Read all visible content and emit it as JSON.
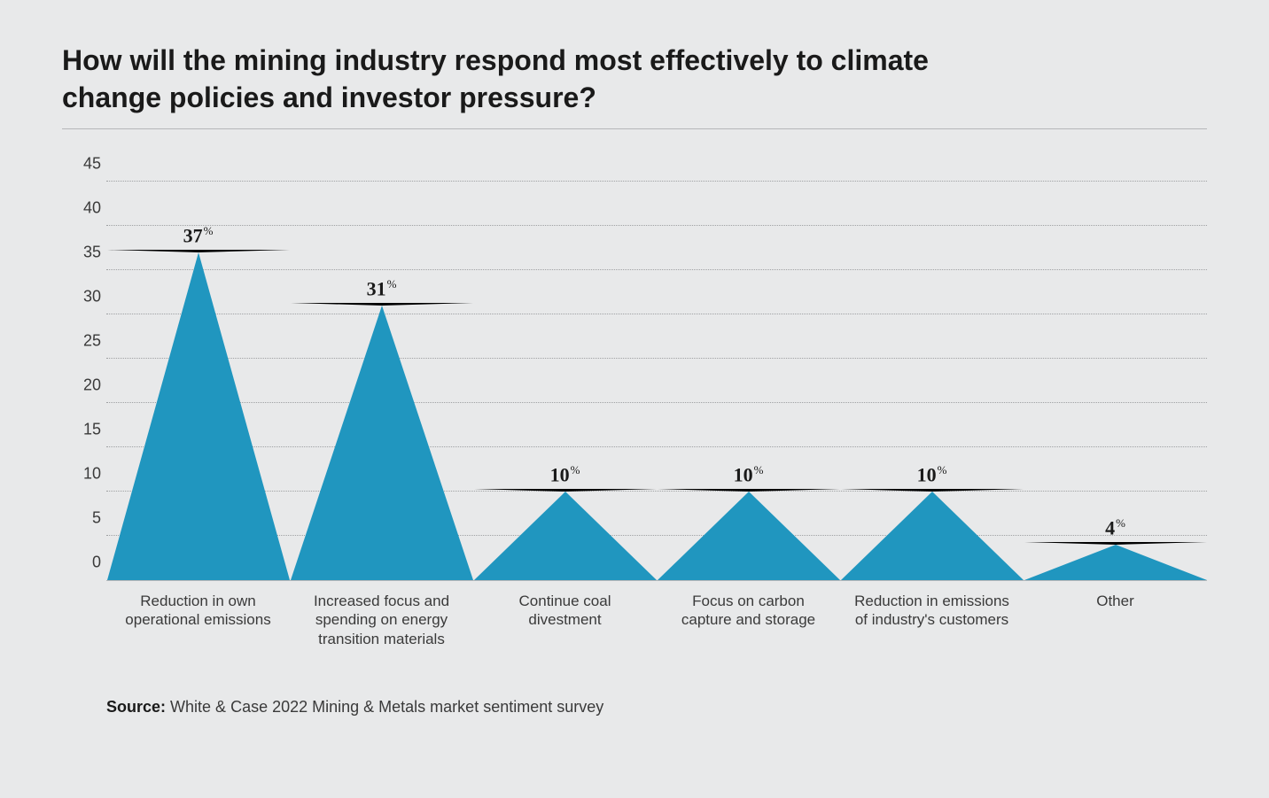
{
  "chart": {
    "type": "triangle-column",
    "title": "How will the mining industry respond most effectively to climate change policies and investor pressure?",
    "background_color": "#e8e9ea",
    "triangle_color": "#2096bf",
    "grid_color": "#9fa1a3",
    "title_color": "#1a1a1a",
    "title_fontsize": 32,
    "axis_label_fontsize": 17,
    "value_label_fontsize": 22,
    "value_label_font": "Georgia, serif",
    "ylim": [
      0,
      45
    ],
    "ytick_step": 5,
    "y_ticks": [
      0,
      5,
      10,
      15,
      20,
      25,
      30,
      35,
      40,
      45
    ],
    "categories": [
      "Reduction in own operational emissions",
      "Increased focus and spending on energy transition materials",
      "Continue coal divestment",
      "Focus on carbon capture and storage",
      "Reduction in emissions of industry's customers",
      "Other"
    ],
    "values": [
      37,
      31,
      10,
      10,
      10,
      4
    ],
    "value_suffix": "%"
  },
  "source": {
    "prefix": "Source:",
    "text": "White & Case 2022 Mining & Metals market sentiment survey"
  }
}
